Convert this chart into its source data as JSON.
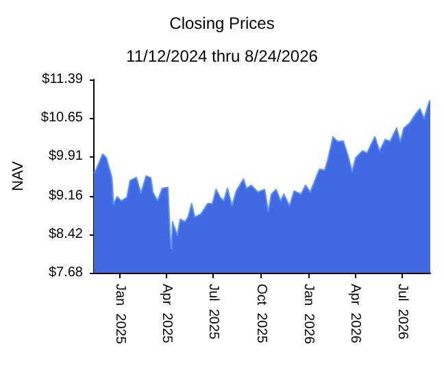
{
  "chart_data": {
    "type": "area",
    "title": "Closing Prices",
    "subtitle": "11/12/2024 thru 8/24/2026",
    "ylabel": "NAV",
    "xlim": [
      "2024-11-12",
      "2026-08-24"
    ],
    "xticks": [
      {
        "value": "2025-01-01",
        "label": "Jan  2025"
      },
      {
        "value": "2025-04-01",
        "label": "Apr  2025"
      },
      {
        "value": "2025-07-01",
        "label": "Jul  2025"
      },
      {
        "value": "2025-10-01",
        "label": "Oct  2025"
      },
      {
        "value": "2026-01-01",
        "label": "Jan  2026"
      },
      {
        "value": "2026-04-01",
        "label": "Apr  2026"
      },
      {
        "value": "2026-07-01",
        "label": "Jul  2026"
      }
    ],
    "ylim": [
      7.68,
      11.39
    ],
    "yticks": [
      {
        "value": 7.68,
        "label": "$7.68"
      },
      {
        "value": 8.42,
        "label": "$8.42"
      },
      {
        "value": 9.16,
        "label": "$9.16"
      },
      {
        "value": 9.91,
        "label": "$9.91"
      },
      {
        "value": 10.65,
        "label": "$10.65"
      },
      {
        "value": 11.39,
        "label": "$11.39"
      }
    ],
    "grid": false,
    "marker": "none",
    "series": [
      {
        "color": "#4169e1",
        "x": [
          "2024-11-12",
          "2024-11-16",
          "2024-11-29",
          "2024-12-06",
          "2024-12-17",
          "2024-12-20",
          "2024-12-27",
          "2025-01-04",
          "2025-01-15",
          "2025-01-21",
          "2025-02-02",
          "2025-02-11",
          "2025-02-21",
          "2025-03-02",
          "2025-03-06",
          "2025-03-15",
          "2025-03-24",
          "2025-04-04",
          "2025-04-09",
          "2025-04-11",
          "2025-04-13",
          "2025-04-22",
          "2025-04-28",
          "2025-05-07",
          "2025-05-13",
          "2025-05-20",
          "2025-05-26",
          "2025-06-07",
          "2025-06-20",
          "2025-06-29",
          "2025-07-06",
          "2025-07-14",
          "2025-07-21",
          "2025-07-28",
          "2025-08-06",
          "2025-08-14",
          "2025-08-28",
          "2025-09-03",
          "2025-09-12",
          "2025-09-25",
          "2025-10-08",
          "2025-10-15",
          "2025-10-21",
          "2025-10-30",
          "2025-11-08",
          "2025-11-14",
          "2025-11-25",
          "2025-12-04",
          "2025-12-17",
          "2025-12-26",
          "2026-01-04",
          "2026-01-13",
          "2026-01-22",
          "2026-02-01",
          "2026-02-07",
          "2026-02-17",
          "2026-02-26",
          "2026-03-09",
          "2026-03-18",
          "2026-03-26",
          "2026-04-02",
          "2026-04-15",
          "2026-04-24",
          "2026-05-01",
          "2026-05-09",
          "2026-05-18",
          "2026-05-29",
          "2026-06-07",
          "2026-06-20",
          "2026-06-27",
          "2026-07-04",
          "2026-07-15",
          "2026-07-26",
          "2026-08-04",
          "2026-08-12",
          "2026-08-21",
          "2026-08-24"
        ],
        "values": [
          9.6,
          9.65,
          9.96,
          9.89,
          9.5,
          8.99,
          9.14,
          9.06,
          9.13,
          9.45,
          9.51,
          9.21,
          9.54,
          9.5,
          9.23,
          9.06,
          9.3,
          9.32,
          8.27,
          8.14,
          8.66,
          8.4,
          8.71,
          8.66,
          8.75,
          9.01,
          8.75,
          8.81,
          9.01,
          9.01,
          9.28,
          9.13,
          9.06,
          9.3,
          8.97,
          9.25,
          9.48,
          9.3,
          9.36,
          9.23,
          9.28,
          8.86,
          9.19,
          9.28,
          9.06,
          9.19,
          8.97,
          9.25,
          9.19,
          9.36,
          9.23,
          9.45,
          9.67,
          9.65,
          9.85,
          10.29,
          10.2,
          10.21,
          9.93,
          9.63,
          9.89,
          10.02,
          9.98,
          10.13,
          10.29,
          10.02,
          10.24,
          10.2,
          10.46,
          10.2,
          10.46,
          10.55,
          10.72,
          10.83,
          10.64,
          10.94,
          10.99
        ]
      }
    ]
  }
}
